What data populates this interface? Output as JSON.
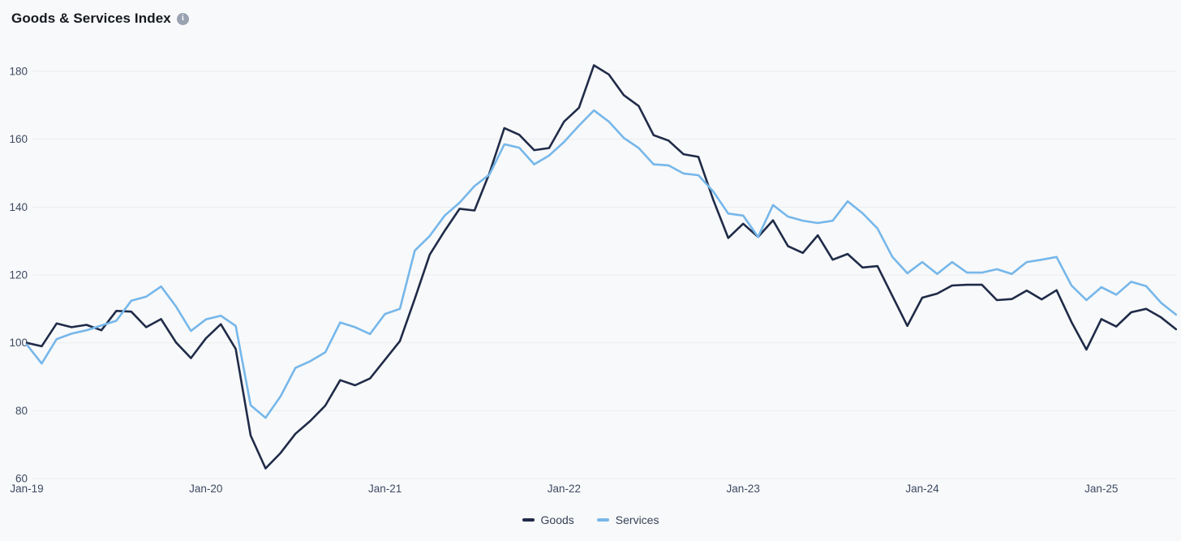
{
  "header": {
    "title": "Goods & Services Index"
  },
  "chart_data": {
    "type": "line",
    "title": "Goods & Services Index",
    "x_unit": "month",
    "x_range": [
      "Jan-2019",
      "Jun-2025"
    ],
    "x_tick_labels": [
      "Jan-19",
      "Jan-20",
      "Jan-21",
      "Jan-22",
      "Jan-23",
      "Jan-24",
      "Jan-25"
    ],
    "months_per_tick": 12,
    "y_ticks": [
      60,
      80,
      100,
      120,
      140,
      160,
      180
    ],
    "ylim": [
      60,
      185
    ],
    "grid": "horizontal",
    "grid_color": "#ebedf0",
    "axis_text_color": "#3d4a63",
    "background_color": "#f8f9fa",
    "legend_position": "bottom-center",
    "series": [
      {
        "name": "Goods",
        "color": "#1f2b48",
        "values": [
          100,
          99,
          105.7,
          104.6,
          105.3,
          103.7,
          109.4,
          109.2,
          104.6,
          107,
          100.1,
          95.5,
          101.3,
          105.5,
          98.2,
          72.7,
          63,
          67.5,
          73.2,
          77,
          81.5,
          89,
          87.5,
          89.5,
          95,
          100.5,
          113,
          126,
          133,
          139.5,
          139,
          150,
          163.3,
          161.3,
          156.8,
          157.4,
          165.2,
          169.3,
          181.8,
          179.1,
          173,
          169.8,
          161.2,
          159.6,
          155.6,
          154.8,
          142.1,
          130.9,
          135.1,
          131.2,
          136.1,
          128.5,
          126.5,
          131.7,
          124.5,
          126.2,
          122.2,
          122.6,
          113.8,
          105,
          113.3,
          114.5,
          116.9,
          117.1,
          117.1,
          112.6,
          112.9,
          115.4,
          112.8,
          115.5,
          106.1,
          98,
          107,
          104.8,
          109,
          110,
          107.5,
          104
        ]
      },
      {
        "name": "Services",
        "color": "#76b7ea",
        "values": [
          99.5,
          93.9,
          101.1,
          102.7,
          103.7,
          105.1,
          106.5,
          112.4,
          113.6,
          116.6,
          110.7,
          103.5,
          106.9,
          108,
          105,
          81.6,
          77.9,
          84.2,
          92.6,
          94.6,
          97.2,
          106,
          104.6,
          102.6,
          108.5,
          110,
          127.2,
          131.5,
          137.5,
          141.3,
          146.2,
          149.6,
          158.5,
          157.5,
          152.6,
          155.2,
          159.2,
          164,
          168.5,
          165.2,
          160.4,
          157.4,
          152.6,
          152.3,
          149.9,
          149.4,
          144.6,
          138.1,
          137.5,
          131.2,
          140.6,
          137.2,
          136,
          135.3,
          136,
          141.7,
          138.2,
          133.7,
          125.3,
          120.5,
          123.8,
          120.3,
          123.8,
          120.7,
          120.7,
          121.7,
          120.3,
          123.8,
          124.5,
          125.3,
          116.9,
          112.6,
          116.4,
          114.2,
          118,
          116.7,
          111.8,
          108.3
        ]
      }
    ]
  }
}
